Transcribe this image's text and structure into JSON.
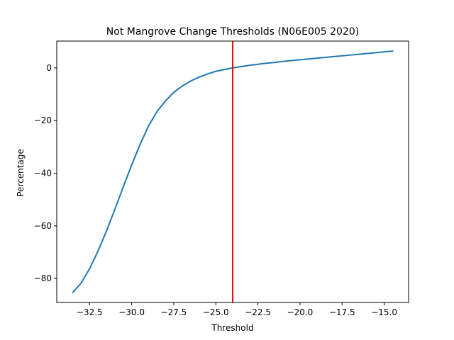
{
  "chart_data": {
    "type": "line",
    "title": "Not Mangrove Change Thresholds (N06E005 2020)",
    "xlabel": "Threshold",
    "ylabel": "Percentage",
    "xlim": [
      -34.45,
      -13.55
    ],
    "ylim": [
      -89.1,
      10.2
    ],
    "xticks": [
      -32.5,
      -30.0,
      -27.5,
      -25.0,
      -22.5,
      -20.0,
      -17.5,
      -15.0
    ],
    "xtick_labels": [
      "−32.5",
      "−30.0",
      "−27.5",
      "−25.0",
      "−22.5",
      "−20.0",
      "−17.5",
      "−15.0"
    ],
    "yticks": [
      -80,
      -60,
      -40,
      -20,
      0
    ],
    "ytick_labels": [
      "−80",
      "−60",
      "−40",
      "−20",
      "0"
    ],
    "grid": false,
    "series": [
      {
        "color": "#1f77b4",
        "x": [
          -33.5,
          -33.0,
          -32.5,
          -32.0,
          -31.5,
          -31.0,
          -30.5,
          -30.0,
          -29.5,
          -29.0,
          -28.5,
          -28.0,
          -27.5,
          -27.0,
          -26.5,
          -26.0,
          -25.5,
          -25.0,
          -24.5,
          -24.0,
          -23.5,
          -23.0,
          -22.5,
          -22.0,
          -21.5,
          -21.0,
          -20.5,
          -20.0,
          -19.5,
          -19.0,
          -18.5,
          -18.0,
          -17.5,
          -17.0,
          -16.5,
          -16.0,
          -15.5,
          -15.0,
          -14.5
        ],
        "y": [
          -85.3,
          -81.7,
          -76.3,
          -69.6,
          -62.0,
          -53.8,
          -45.2,
          -36.9,
          -29.0,
          -22.1,
          -16.6,
          -12.6,
          -9.3,
          -6.9,
          -5.0,
          -3.5,
          -2.3,
          -1.3,
          -0.6,
          0.0,
          0.5,
          1.0,
          1.4,
          1.8,
          2.1,
          2.5,
          2.8,
          3.1,
          3.4,
          3.7,
          4.0,
          4.3,
          4.6,
          4.9,
          5.2,
          5.5,
          5.8,
          6.1,
          6.4
        ]
      }
    ],
    "vline": {
      "x": -24.0,
      "color": "#ff0000"
    }
  }
}
